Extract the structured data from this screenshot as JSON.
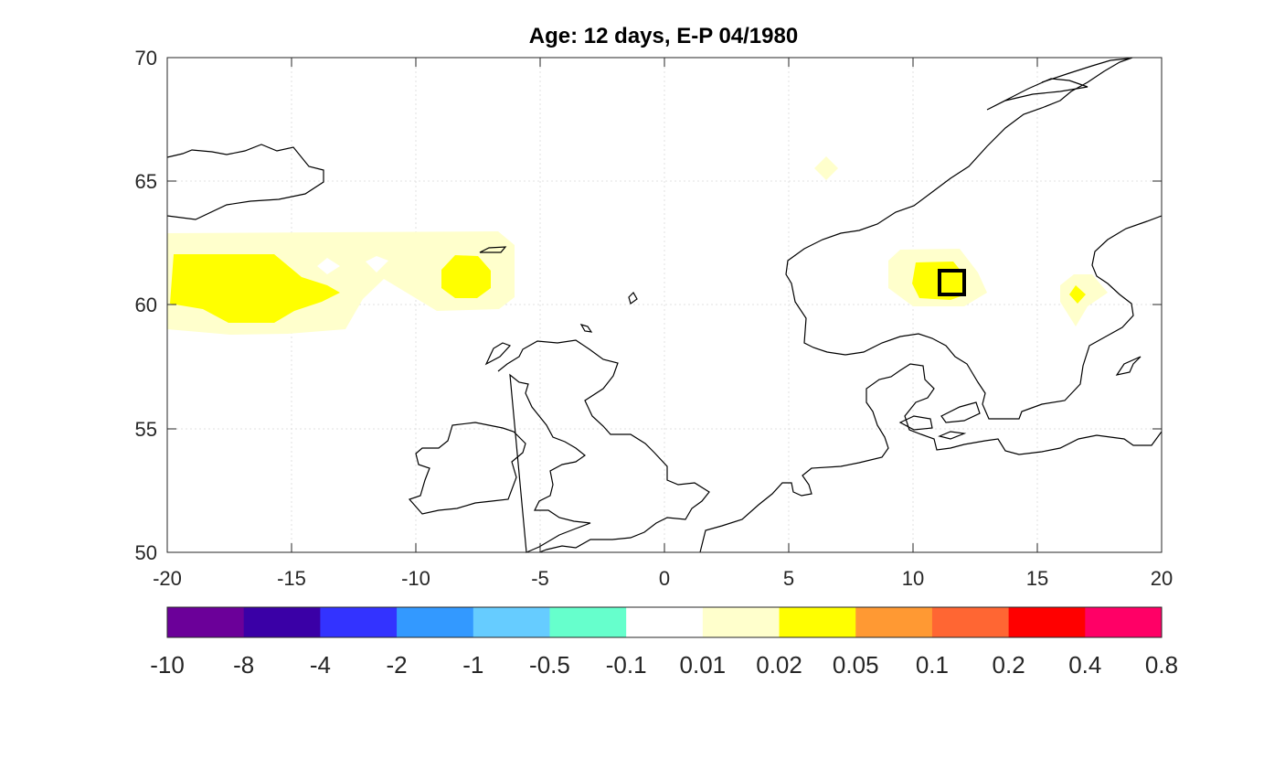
{
  "title": "Age: 12 days, E-P 04/1980",
  "map": {
    "x_ticks": [
      "-20",
      "-15",
      "-10",
      "-5",
      "0",
      "5",
      "10",
      "15",
      "20"
    ],
    "y_ticks": [
      "70",
      "65",
      "60",
      "55",
      "50"
    ],
    "marker_label": "target box near 11.5E, 61N"
  },
  "colorbar": {
    "colors": [
      "#6b0099",
      "#3a00a6",
      "#3333ff",
      "#3399ff",
      "#66ccff",
      "#66ffcc",
      "#ffffff",
      "#ffffcc",
      "#ffff00",
      "#ff9933",
      "#ff6633",
      "#ff0000",
      "#ff0066"
    ],
    "labels": [
      "-10",
      "-8",
      "-4",
      "-2",
      "-1",
      "-0.5",
      "-0.1",
      "0.01",
      "0.02",
      "0.05",
      "0.1",
      "0.2",
      "0.4",
      "0.8"
    ]
  }
}
